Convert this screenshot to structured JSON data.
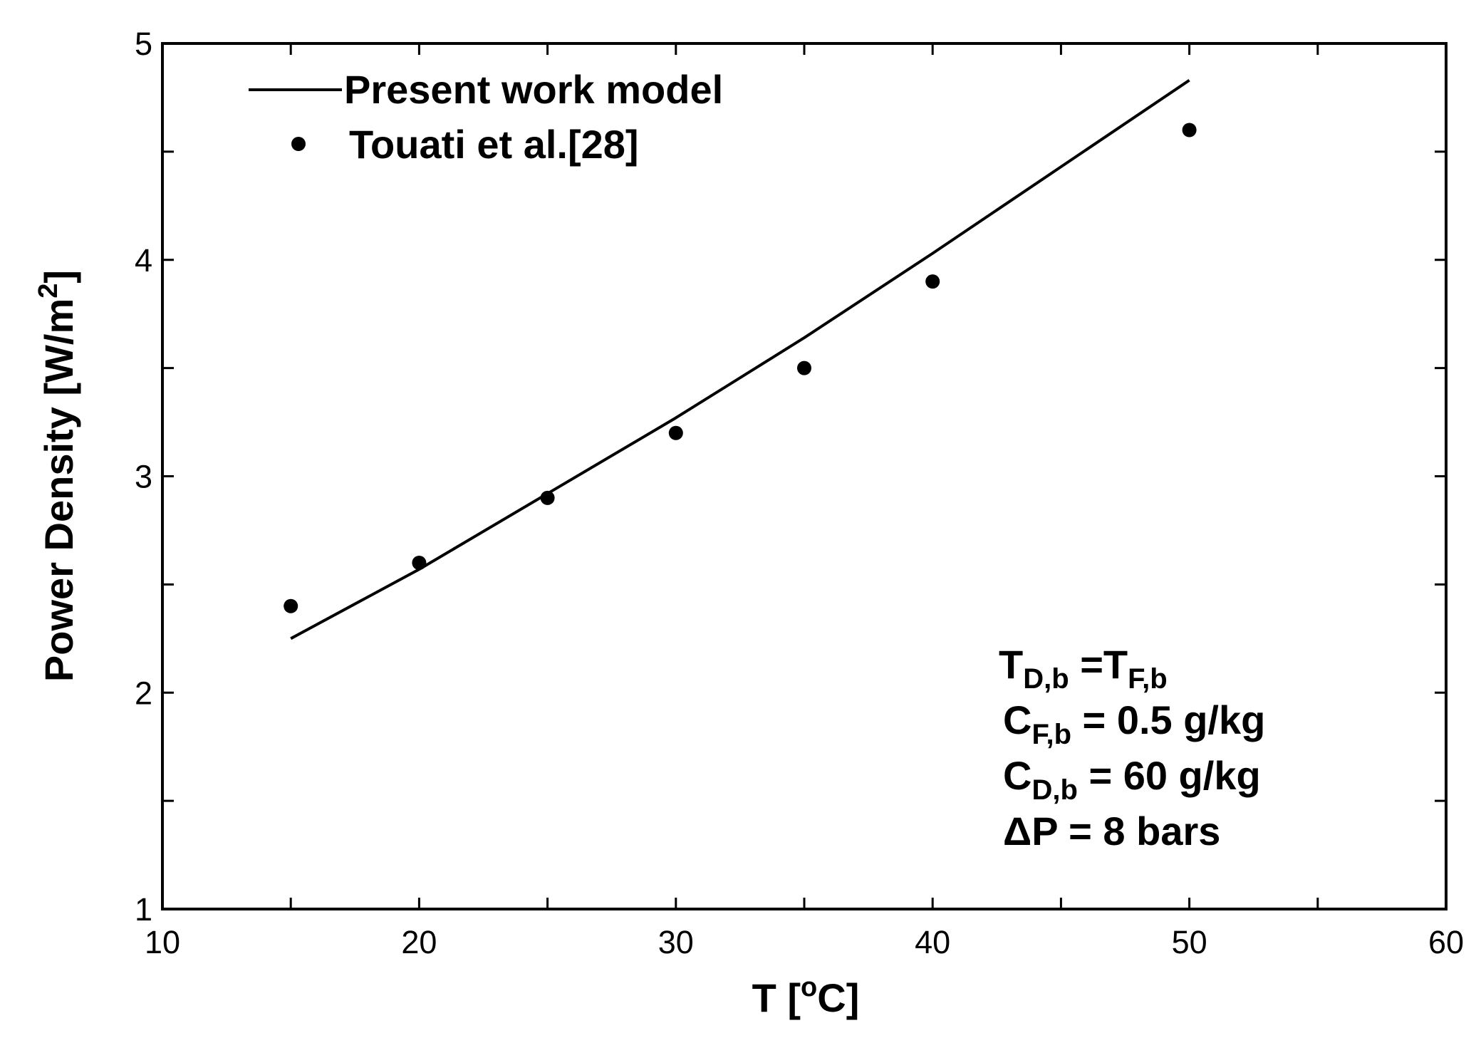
{
  "chart_data": {
    "type": "line",
    "title": "",
    "xlabel": {
      "main": "T  [",
      "sup": "o",
      "unit": "C]"
    },
    "ylabel": {
      "main": "Power Density [W/m",
      "sup": "2",
      "end": "]"
    },
    "xlim": [
      10,
      60
    ],
    "ylim": [
      1,
      5
    ],
    "xticks": [
      "10",
      "20",
      "30",
      "40",
      "50",
      "60"
    ],
    "yticks": [
      "1",
      "2",
      "3",
      "4",
      "5"
    ],
    "grid": false,
    "legend_position": "top-left",
    "series": [
      {
        "name": "Present work model",
        "style": "line",
        "color": "#000000",
        "x": [
          15,
          20,
          25,
          30,
          35,
          40,
          45,
          50
        ],
        "y": [
          2.25,
          2.57,
          2.92,
          3.27,
          3.64,
          4.03,
          4.43,
          4.83
        ]
      },
      {
        "name": "Touati et al.[28]",
        "style": "markers",
        "color": "#000000",
        "x": [
          15,
          20,
          25,
          30,
          35,
          40,
          50
        ],
        "y": [
          2.4,
          2.6,
          2.9,
          3.2,
          3.5,
          3.9,
          4.6
        ]
      }
    ],
    "annotations": {
      "line1": {
        "a": "T",
        "a_sub": "D,b",
        "b": " =T",
        "b_sub": "F,b"
      },
      "line2": {
        "a": "C",
        "a_sub": "F,b",
        "b": " = 0.5 g/kg"
      },
      "line3": {
        "a": "C",
        "a_sub": "D,b",
        "b": " = 60 g/kg"
      },
      "line4": {
        "a": "ΔP = 8 bars"
      }
    }
  }
}
